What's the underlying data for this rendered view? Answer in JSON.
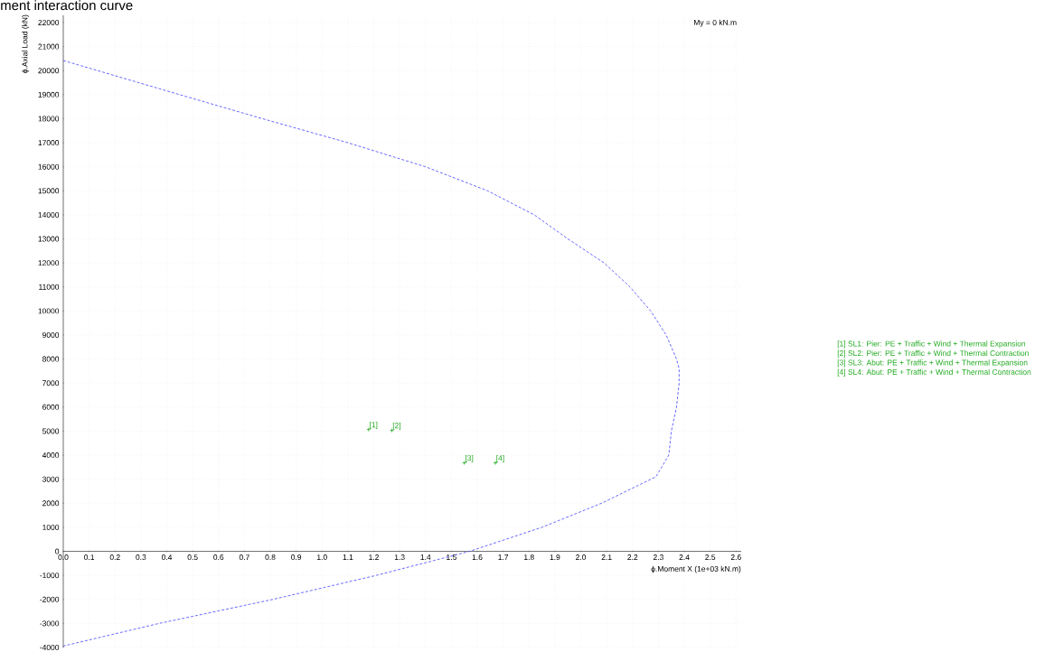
{
  "chart_data": {
    "type": "line",
    "title": "ment interaction curve",
    "xlabel": "ϕ.Moment X (1e+03 kN.m)",
    "ylabel": "ϕ.Axial Load (kN)",
    "xlim": [
      0,
      2.62
    ],
    "ylim": [
      -4000,
      22300
    ],
    "xticks": [
      {
        "value": 0,
        "label": "0.0"
      },
      0.1,
      0.2,
      0.3,
      0.4,
      0.5,
      0.6,
      0.7,
      0.8,
      0.9,
      {
        "value": 1,
        "label": "1.0"
      },
      1.1,
      1.2,
      1.3,
      1.4,
      1.5,
      1.6,
      1.7,
      1.8,
      1.9,
      {
        "value": 2,
        "label": "2.0"
      },
      2.1,
      2.2,
      2.3,
      2.4,
      2.5,
      2.6
    ],
    "yticks": [
      -4000,
      -3000,
      -2000,
      -1000,
      0,
      1000,
      2000,
      3000,
      4000,
      5000,
      6000,
      7000,
      8000,
      9000,
      10000,
      11000,
      12000,
      13000,
      14000,
      15000,
      16000,
      17000,
      18000,
      19000,
      20000,
      21000,
      22000
    ],
    "grid": true,
    "legend": "right",
    "series": [
      {
        "color": "#4444ff",
        "line_style": "dashed",
        "marker": "none",
        "x": [
          0,
          0.45,
          0.77,
          1.1,
          1.4,
          1.64,
          1.82,
          1.95,
          2.09,
          2.19,
          2.27,
          2.33,
          2.37,
          2.38,
          2.38,
          2.37,
          2.35,
          2.34,
          2.29,
          2.08,
          1.85,
          1.57,
          1.21,
          0.81,
          0.37,
          0
        ],
        "values": [
          20420,
          19000,
          18000,
          17000,
          16000,
          15000,
          14000,
          13000,
          12000,
          11000,
          10000,
          9000,
          8000,
          7600,
          7000,
          6000,
          5000,
          4000,
          3100,
          2000,
          1000,
          0,
          -1000,
          -2000,
          -3000,
          -3940
        ]
      },
      {
        "type": "scatter",
        "name": "[1] SL1: Pier: PE + Traffic + Wind + Thermal Expansion",
        "color": "#22aa22",
        "marker": "cross",
        "x": [
          1.18
        ],
        "values": [
          5070
        ]
      },
      {
        "type": "scatter",
        "name": "[2] SL2: Pier: PE + Traffic + Wind + Thermal Contraction",
        "color": "#22aa22",
        "marker": "cross",
        "x": [
          1.27
        ],
        "values": [
          5030
        ]
      },
      {
        "type": "scatter",
        "name": "[3] SL3: Abut: PE + Traffic + Wind + Thermal Expansion",
        "color": "#22aa22",
        "marker": "cross",
        "x": [
          1.55
        ],
        "values": [
          3680
        ]
      },
      {
        "type": "scatter",
        "name": "[4] SL4: Abut: PE + Traffic + Wind + Thermal Contraction",
        "color": "#22aa22",
        "marker": "cross",
        "x": [
          1.67
        ],
        "values": [
          3680
        ]
      }
    ],
    "annotations": [
      {
        "text": "[1]",
        "x": 1.18,
        "y": 5070
      },
      {
        "text": "[2]",
        "x": 1.27,
        "y": 5030
      },
      {
        "text": "[3]",
        "x": 1.55,
        "y": 3680
      },
      {
        "text": "[4]",
        "x": 1.67,
        "y": 3680
      },
      "My = 0 kN.m"
    ]
  }
}
